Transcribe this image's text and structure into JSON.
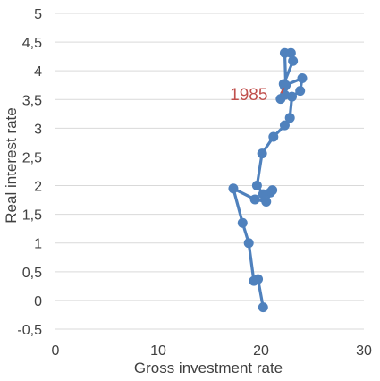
{
  "chart_data": {
    "type": "line",
    "title": "",
    "xlabel": "Gross investment rate",
    "ylabel": "Real interest rate",
    "xlim": [
      0,
      30
    ],
    "ylim": [
      -0.5,
      5
    ],
    "x_ticks": [
      0,
      10,
      20,
      30
    ],
    "x_tick_labels": [
      "0",
      "10",
      "20",
      "30"
    ],
    "y_ticks": [
      -0.5,
      0,
      0.5,
      1,
      1.5,
      2,
      2.5,
      3,
      3.5,
      4,
      4.5,
      5
    ],
    "y_tick_labels": [
      "-0,5",
      "0",
      "0,5",
      "1",
      "1,5",
      "2",
      "2,5",
      "3",
      "3,5",
      "4",
      "4,5",
      "5"
    ],
    "grid": "horizontal",
    "series": [
      {
        "color": "#4f81bd",
        "x": [
          20.2,
          19.7,
          19.3,
          18.8,
          18.2,
          17.3,
          19.4,
          20.5,
          21.1,
          20.9,
          20.2,
          19.6,
          20.1,
          21.2,
          22.3,
          22.8,
          23.0,
          23.8,
          24.0,
          22.4,
          22.3,
          22.9,
          23.1,
          22.2,
          22.3,
          21.9,
          22.3
        ],
        "y": [
          -0.12,
          0.37,
          0.34,
          1.0,
          1.35,
          1.95,
          1.76,
          1.72,
          1.92,
          1.88,
          1.85,
          2.0,
          2.56,
          2.85,
          3.05,
          3.18,
          3.55,
          3.65,
          3.87,
          3.75,
          4.31,
          4.31,
          4.17,
          3.77,
          3.73,
          3.51,
          3.58
        ]
      }
    ],
    "annotations": [
      {
        "text": "1985",
        "x": 22.3,
        "y": 3.58,
        "color": "#c0504d"
      }
    ]
  }
}
